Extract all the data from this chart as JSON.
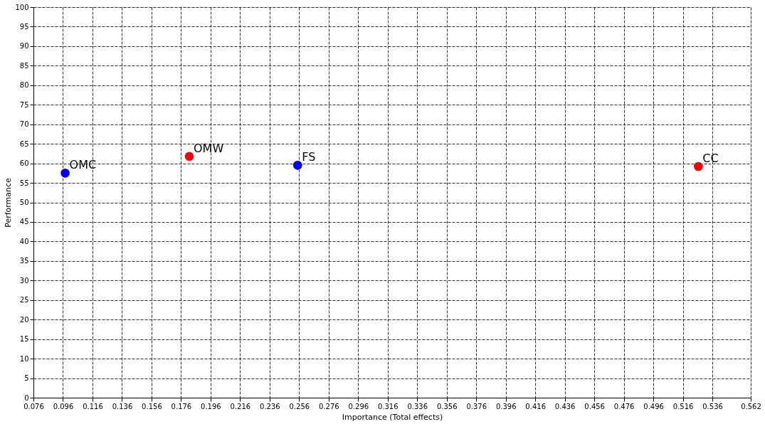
{
  "chart_data": {
    "type": "scatter",
    "xlabel": "Importance (Total effects)",
    "ylabel": "Performance",
    "x": [
      0.0975,
      0.1816,
      0.255,
      0.5265
    ],
    "values": [
      57.5,
      61.8,
      59.5,
      59.2
    ],
    "colors": [
      "#0000ff",
      "#ff0000",
      "#0000ff",
      "#ff0000"
    ],
    "annotations": [
      {
        "text": "OMC",
        "x": 0.0975,
        "y": 57.5
      },
      {
        "text": "OMW",
        "x": 0.1816,
        "y": 61.8
      },
      {
        "text": "FS",
        "x": 0.255,
        "y": 59.5
      },
      {
        "text": "CC",
        "x": 0.5265,
        "y": 59.2
      }
    ],
    "xlim": [
      0.076,
      0.562
    ],
    "xticks": [
      0.076,
      0.096,
      0.116,
      0.136,
      0.156,
      0.176,
      0.196,
      0.216,
      0.236,
      0.256,
      0.276,
      0.296,
      0.316,
      0.336,
      0.356,
      0.376,
      0.396,
      0.416,
      0.436,
      0.456,
      0.476,
      0.496,
      0.516,
      0.536,
      0.562
    ],
    "ylim": [
      0,
      100
    ],
    "yticks": [
      0,
      5,
      10,
      15,
      20,
      25,
      30,
      35,
      40,
      45,
      50,
      55,
      60,
      65,
      70,
      75,
      80,
      85,
      90,
      95,
      100
    ],
    "grid": true,
    "marker": "circle"
  }
}
